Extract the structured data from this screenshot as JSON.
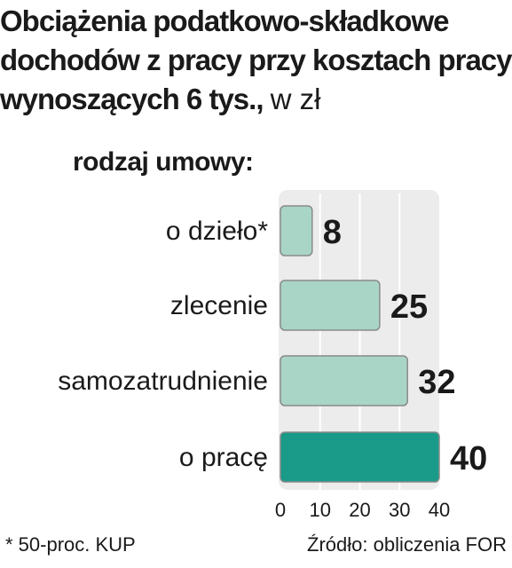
{
  "header": {
    "title": "Obciążenia podatkowo-składkowe dochodów z pracy przy kosztach pracy wynoszących 6 tys.,",
    "unit": "w zł"
  },
  "chart_data": {
    "type": "bar",
    "orientation": "horizontal",
    "category_heading": "rodzaj umowy:",
    "categories": [
      "o dzieło*",
      "zlecenie",
      "samozatrudnienie",
      "o pracę"
    ],
    "values": [
      8,
      25,
      32,
      40
    ],
    "value_labels": [
      "8",
      "25",
      "32",
      "40"
    ],
    "xlim": [
      0,
      40
    ],
    "xticks": [
      "0",
      "10",
      "20",
      "30",
      "40"
    ],
    "grid": true,
    "colors": {
      "bar": "#a8d5c6",
      "bar_highlight": "#1a9a88",
      "bar_border": "#8a8a8a",
      "panel": "#ececec",
      "grid": "#ffffff"
    },
    "highlight_index": 3
  },
  "footer": {
    "footnote": "* 50-proc. KUP",
    "source": "Źródło: obliczenia FOR"
  }
}
